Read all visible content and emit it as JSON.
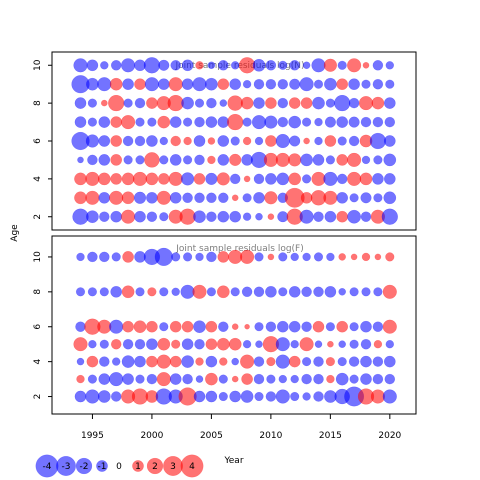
{
  "chart_data": {
    "type": "scatter",
    "panels": [
      {
        "id": "N",
        "title": "Joint sample residuals log(N)",
        "ages": [
          2,
          3,
          4,
          5,
          6,
          7,
          8,
          9,
          10
        ],
        "y_ticks": [
          "2",
          "4",
          "6",
          "8",
          "10"
        ],
        "ylim": [
          1.3,
          10.7
        ]
      },
      {
        "id": "F",
        "title": "Joint sample residuals log(F)",
        "ages": [
          2,
          3,
          4,
          5,
          6,
          8,
          10
        ],
        "y_ticks": [
          "2",
          "4",
          "6",
          "8",
          "10"
        ],
        "ylim": [
          1.0,
          11.2
        ]
      }
    ],
    "years": [
      1994,
      1995,
      1996,
      1997,
      1998,
      1999,
      2000,
      2001,
      2002,
      2003,
      2004,
      2005,
      2006,
      2007,
      2008,
      2009,
      2010,
      2011,
      2012,
      2013,
      2014,
      2015,
      2016,
      2017,
      2018,
      2019,
      2020
    ],
    "xlim": [
      1991.6,
      2022.2
    ],
    "x_ticks": [
      "1995",
      "2000",
      "2005",
      "2010",
      "2015",
      "2020"
    ],
    "xlabel": "Year",
    "ylabel": "Age",
    "colors": {
      "positive": "#ff0000",
      "negative": "#0000ff",
      "opacity": 0.55
    },
    "legend": {
      "values": [
        -4,
        -3,
        -2,
        -1,
        0,
        1,
        2,
        3,
        4
      ],
      "labels": [
        "-4",
        "-3",
        "-2",
        "-1",
        "0",
        "1",
        "2",
        "3",
        "4"
      ]
    },
    "residuals_N": [
      [
        -2.0,
        -1.2,
        -0.8,
        -1.0,
        1.5,
        -1.0,
        -0.8,
        -0.6,
        1.5,
        2.0,
        -1.2,
        -0.8,
        -1.0,
        -1.0,
        -0.5,
        -0.4,
        0.3,
        -0.9,
        2.0,
        -1.5,
        -0.8,
        -1.0,
        1.0,
        -1.4,
        -0.8,
        1.5,
        -2.0
      ],
      [
        1.2,
        1.5,
        -1.0,
        1.5,
        1.2,
        -1.1,
        -1.0,
        1.5,
        -1.0,
        -0.8,
        -0.8,
        -0.8,
        -0.8,
        0.3,
        -0.6,
        -1.0,
        1.3,
        -0.8,
        3.0,
        1.0,
        1.8,
        1.5,
        -1.0,
        -0.6,
        -0.9,
        -0.6,
        -1.2
      ],
      [
        1.2,
        1.5,
        1.2,
        1.0,
        1.2,
        1.5,
        1.2,
        1.0,
        1.5,
        -1.3,
        1.0,
        -1.1,
        1.3,
        -0.8,
        0.3,
        -0.8,
        -1.0,
        -1.2,
        1.2,
        -0.6,
        1.5,
        -1.5,
        -0.8,
        1.5,
        1.2,
        -1.0,
        -1.0
      ],
      [
        -0.3,
        -0.8,
        -1.0,
        1.0,
        -0.6,
        -0.6,
        1.8,
        -0.6,
        -1.0,
        -0.6,
        -0.8,
        0.5,
        -1.0,
        1.1,
        -1.0,
        -2.0,
        1.5,
        1.5,
        1.3,
        -1.2,
        -1.0,
        -0.6,
        1.0,
        1.5,
        -0.5,
        -0.6,
        -1.2
      ],
      [
        -2.5,
        -1.3,
        -1.0,
        1.0,
        -0.8,
        -0.8,
        -1.0,
        -0.5,
        0.8,
        0.5,
        -1.0,
        0.4,
        -1.0,
        -0.6,
        0.5,
        -0.5,
        1.0,
        -1.5,
        -0.9,
        0.3,
        -0.5,
        1.0,
        -0.6,
        -0.8,
        1.2,
        -2.0,
        -1.0
      ],
      [
        -1.0,
        -0.6,
        -1.0,
        1.0,
        1.5,
        -0.6,
        -0.6,
        1.2,
        -1.0,
        -0.6,
        -0.8,
        -1.0,
        -1.0,
        2.0,
        -0.6,
        -1.5,
        -1.3,
        -0.8,
        -1.2,
        -0.6,
        -0.5,
        -0.9,
        -1.0,
        -0.9,
        -0.8,
        -0.8,
        -0.8
      ],
      [
        -1.0,
        -0.6,
        0.3,
        2.0,
        -0.6,
        -0.8,
        1.0,
        1.5,
        2.0,
        -1.2,
        -0.6,
        -0.8,
        -0.4,
        1.8,
        1.2,
        -1.0,
        1.0,
        -0.8,
        1.0,
        1.0,
        -1.2,
        -0.6,
        -2.0,
        -0.8,
        1.5,
        1.2,
        -1.0
      ],
      [
        -2.5,
        -1.2,
        -1.5,
        1.2,
        -1.0,
        1.0,
        -1.5,
        -1.0,
        1.5,
        -1.0,
        -1.5,
        -1.2,
        1.0,
        -1.0,
        -0.5,
        -0.8,
        -0.8,
        -0.8,
        -0.9,
        -1.5,
        -0.6,
        -1.2,
        1.0,
        -1.0,
        -0.6,
        -0.8,
        -0.6
      ],
      [
        -1.5,
        -1.0,
        -0.5,
        -0.8,
        -1.5,
        -1.0,
        -2.0,
        -0.9,
        -0.8,
        -1.0,
        0.5,
        -0.4,
        -0.8,
        -0.5,
        2.0,
        -1.2,
        -0.8,
        -0.6,
        -0.8,
        -0.4,
        -1.5,
        1.3,
        -0.6,
        1.5,
        0.3,
        -0.8,
        -0.5
      ]
    ],
    "residuals_F": [
      [
        -1.0,
        -1.5,
        -1.2,
        -0.8,
        1.5,
        2.0,
        1.2,
        -2.0,
        -1.5,
        2.5,
        -1.0,
        -1.0,
        -0.6,
        -1.0,
        -1.2,
        -0.6,
        -0.8,
        -1.5,
        -0.6,
        -0.5,
        -0.8,
        -1.2,
        -1.8,
        -3.0,
        2.0,
        1.5,
        -1.5
      ],
      [
        0.5,
        -0.6,
        -1.0,
        -1.5,
        -1.0,
        -0.6,
        -0.8,
        1.5,
        -1.0,
        -0.8,
        -0.4,
        1.2,
        -0.6,
        0.3,
        1.0,
        -0.8,
        -0.6,
        -0.5,
        -0.5,
        -0.8,
        -0.8,
        0.5,
        -1.2,
        -0.6,
        -1.0,
        -0.8,
        -0.8
      ],
      [
        -0.4,
        1.0,
        -0.8,
        -0.5,
        -1.2,
        -1.0,
        1.0,
        1.5,
        1.0,
        -1.2,
        0.5,
        -1.0,
        0.5,
        -0.4,
        1.5,
        -0.8,
        0.6,
        -1.5,
        1.0,
        -0.6,
        -0.8,
        0.6,
        -0.6,
        -0.8,
        -1.0,
        -0.8,
        -1.0
      ],
      [
        1.5,
        -0.5,
        -0.6,
        0.8,
        -0.8,
        -0.8,
        -1.0,
        1.2,
        0.6,
        -1.0,
        -0.8,
        1.0,
        1.2,
        1.2,
        -0.5,
        -0.4,
        2.0,
        -1.5,
        -0.5,
        1.5,
        -0.4,
        0.3,
        -0.4,
        -0.6,
        -0.8,
        0.5,
        -0.5
      ],
      [
        -0.8,
        2.0,
        1.5,
        -1.5,
        1.0,
        1.2,
        1.0,
        -0.6,
        1.0,
        1.0,
        -1.2,
        1.0,
        -0.8,
        0.3,
        0.2,
        -0.6,
        -0.8,
        -1.0,
        -1.0,
        -0.8,
        1.0,
        -0.6,
        1.0,
        -0.6,
        -1.0,
        -0.8,
        1.5
      ],
      [
        -0.6,
        -0.6,
        -0.6,
        -1.0,
        1.2,
        -0.6,
        0.6,
        -0.6,
        -0.5,
        -1.5,
        1.5,
        -0.6,
        1.2,
        -0.6,
        -0.8,
        -0.8,
        -1.0,
        -0.6,
        -1.0,
        -0.8,
        -0.8,
        -1.0,
        -0.4,
        -0.6,
        -0.6,
        -0.6,
        1.5
      ],
      [
        -0.5,
        -0.8,
        -0.8,
        -0.6,
        1.0,
        -1.0,
        -2.0,
        -2.5,
        -0.6,
        -0.6,
        -0.5,
        -0.8,
        1.0,
        1.5,
        1.5,
        -0.6,
        0.3,
        -0.6,
        -0.5,
        -0.5,
        -0.6,
        -0.5,
        0.4,
        0.3,
        0.5,
        0.3,
        0.6
      ]
    ]
  }
}
